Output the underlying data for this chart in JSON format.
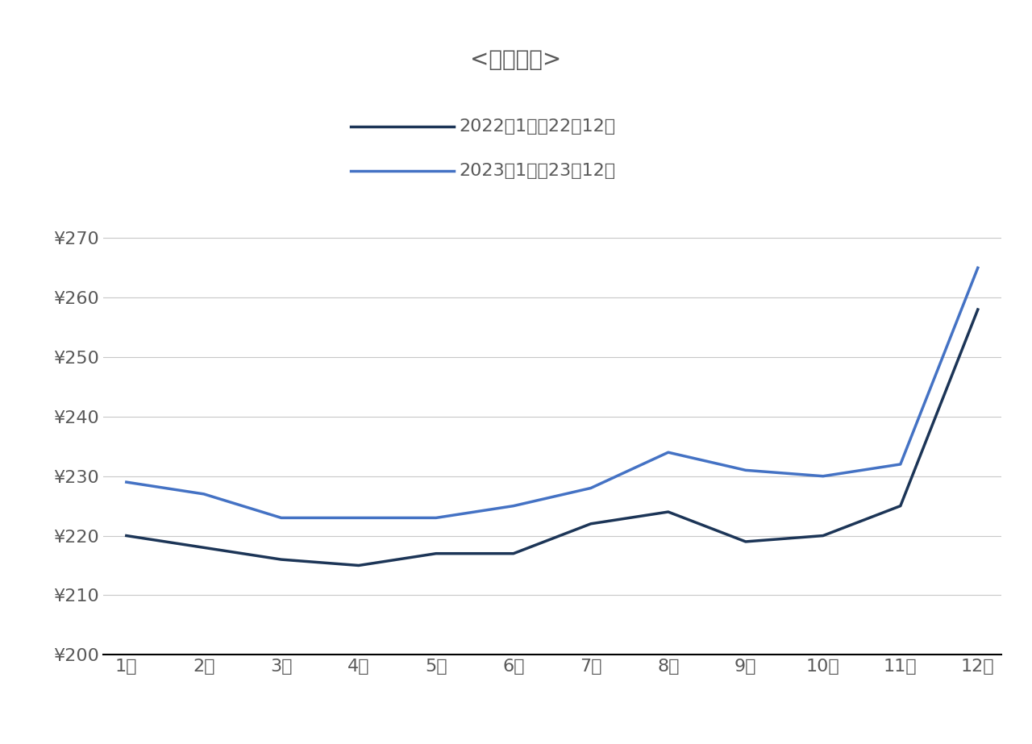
{
  "title": "<平均単価>",
  "months": [
    "1月",
    "2月",
    "3月",
    "4月",
    "5月",
    "6月",
    "7月",
    "8月",
    "9月",
    "10月",
    "11月",
    "12月"
  ],
  "series_2022": [
    220,
    218,
    216,
    215,
    217,
    217,
    222,
    224,
    219,
    220,
    225,
    258
  ],
  "series_2023": [
    229,
    227,
    223,
    223,
    223,
    225,
    228,
    234,
    231,
    230,
    232,
    265
  ],
  "label_2022": "2022年1月～22年12月",
  "label_2023": "2023年1月～23年12月",
  "color_2022": "#1c3557",
  "color_2023": "#4472c4",
  "ylim_min": 200,
  "ylim_max": 275,
  "yticks": [
    200,
    210,
    220,
    230,
    240,
    250,
    260,
    270
  ],
  "background_color": "#ffffff",
  "grid_color": "#c8c8c8",
  "line_width": 2.5,
  "text_color": "#595959",
  "title_fontsize": 20,
  "tick_fontsize": 16,
  "legend_fontsize": 16
}
